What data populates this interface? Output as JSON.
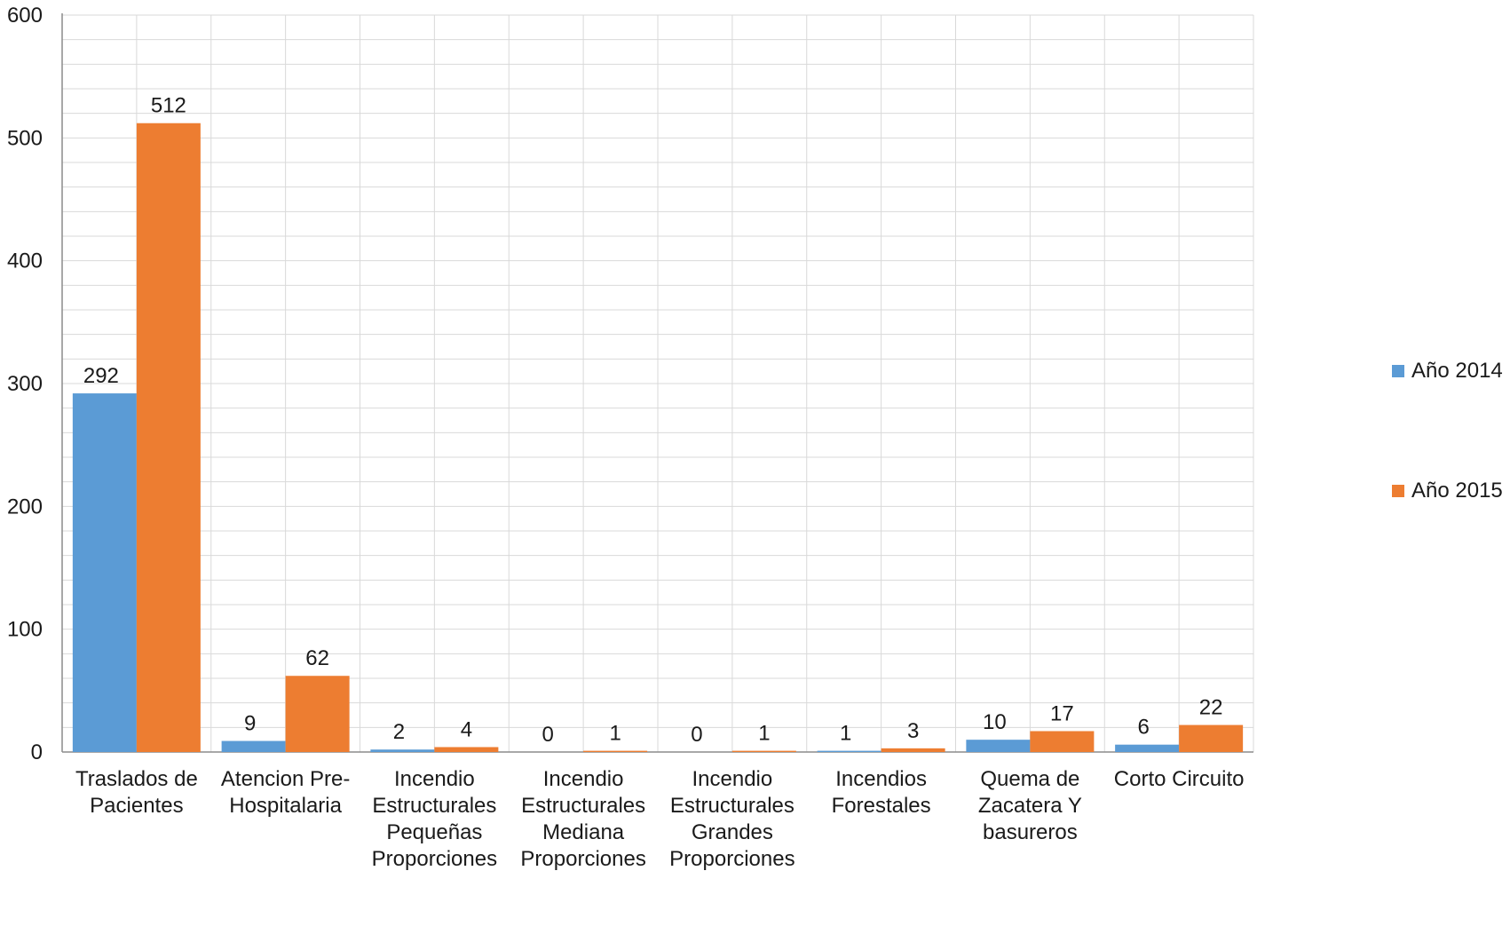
{
  "chart_data": {
    "type": "bar",
    "title": "",
    "xlabel": "",
    "ylabel": "",
    "ylim": [
      0,
      600
    ],
    "yticks": [
      0,
      100,
      200,
      300,
      400,
      500,
      600
    ],
    "grid": true,
    "legend_position": "right",
    "categories": [
      [
        "Traslados de",
        "Pacientes"
      ],
      [
        "Atencion Pre-",
        "Hospitalaria"
      ],
      [
        "Incendio",
        "Estructurales",
        "Pequeñas",
        "Proporciones"
      ],
      [
        "Incendio",
        "Estructurales",
        "Mediana",
        "Proporciones"
      ],
      [
        "Incendio",
        "Estructurales",
        "Grandes",
        "Proporciones"
      ],
      [
        "Incendios",
        "Forestales"
      ],
      [
        "Quema de",
        "Zacatera Y",
        "basureros"
      ],
      [
        "Corto Circuito"
      ]
    ],
    "series": [
      {
        "name": "Año 2014",
        "color": "#5B9BD5",
        "values": [
          292,
          9,
          2,
          0,
          0,
          1,
          10,
          6
        ]
      },
      {
        "name": "Año 2015",
        "color": "#ED7D31",
        "values": [
          512,
          62,
          4,
          1,
          1,
          3,
          17,
          22
        ]
      }
    ]
  }
}
